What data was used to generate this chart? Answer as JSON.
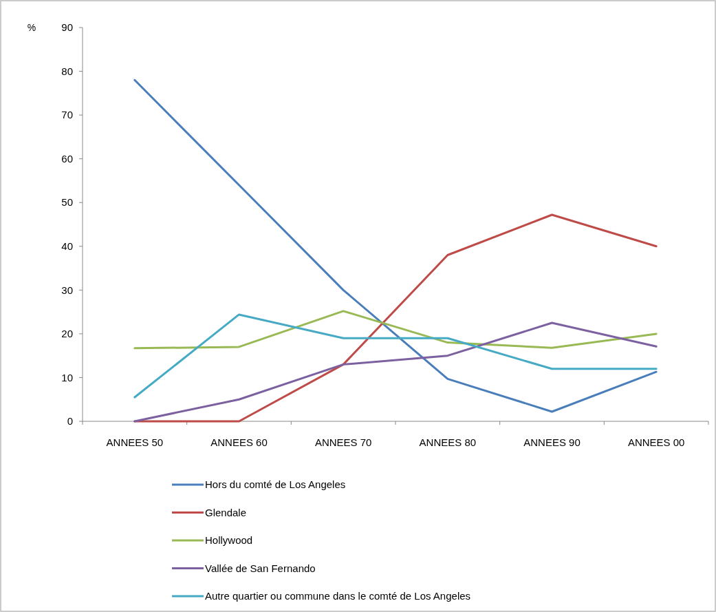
{
  "chart_data": {
    "type": "line",
    "ylabel": "%",
    "categories": [
      "ANNEES 50",
      "ANNEES 60",
      "ANNEES 70",
      "ANNEES 80",
      "ANNEES 90",
      "ANNEES 00"
    ],
    "series": [
      {
        "name": "Hors du comté de Los Angeles",
        "color": "#4a7ebb",
        "values": [
          78,
          54,
          30,
          9.7,
          2.2,
          11.3
        ]
      },
      {
        "name": "Glendale",
        "color": "#be4b48",
        "values": [
          0,
          0,
          13,
          38,
          47.2,
          40
        ]
      },
      {
        "name": "Hollywood",
        "color": "#98b954",
        "values": [
          16.7,
          17,
          25.2,
          18,
          16.8,
          20
        ]
      },
      {
        "name": "Vallée de San Fernando",
        "color": "#7d60a0",
        "values": [
          0,
          5,
          13,
          15,
          22.5,
          17.1
        ]
      },
      {
        "name": "Autre quartier ou commune dans le comté de Los Angeles",
        "color": "#46aac5",
        "values": [
          5.5,
          24.4,
          19,
          19,
          12,
          12
        ]
      }
    ],
    "ylim": [
      0,
      90
    ],
    "yticks": [
      0,
      10,
      20,
      30,
      40,
      50,
      60,
      70,
      80,
      90
    ],
    "grid": false,
    "legend": "bottom",
    "marker": "none",
    "line_style": "solid"
  }
}
